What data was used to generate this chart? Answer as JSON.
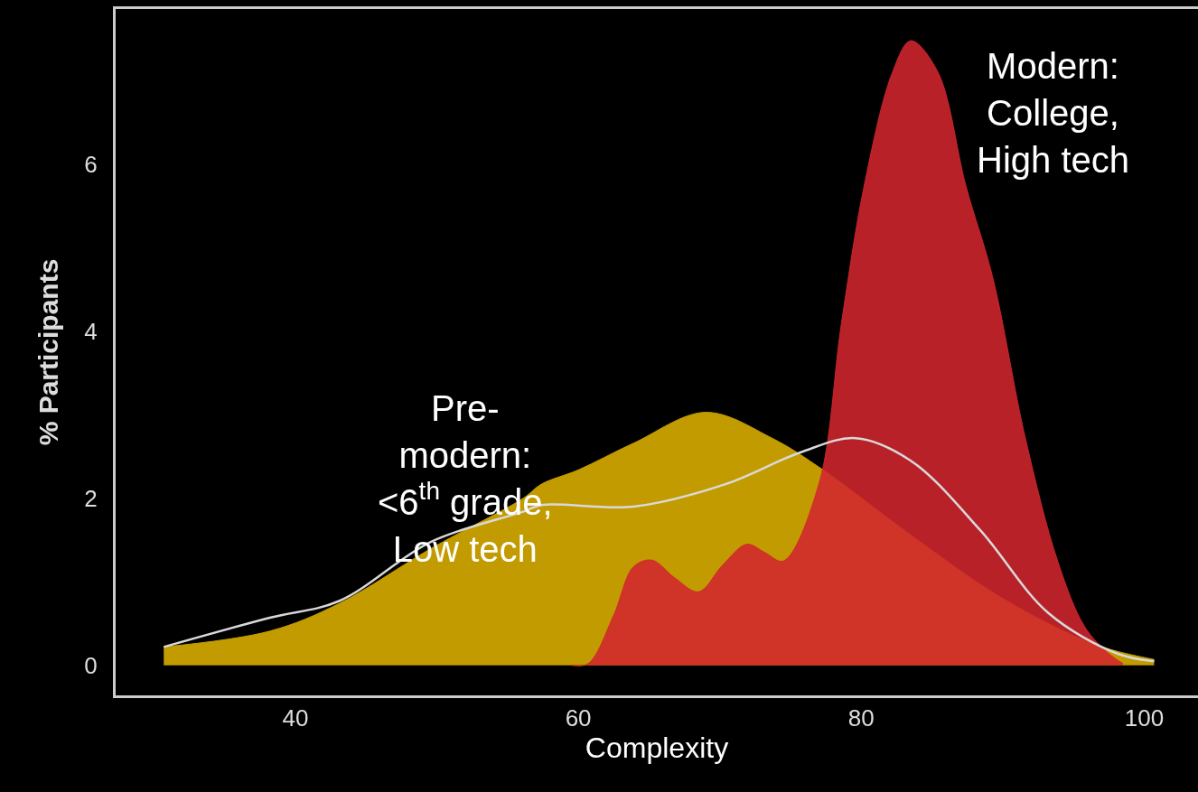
{
  "chart_data": {
    "type": "area",
    "xlabel": "Complexity",
    "ylabel": "% Participants",
    "xlim": [
      27.3,
      103.8
    ],
    "xticks": [
      40,
      60,
      80,
      100
    ],
    "ylim": [
      -0.36,
      7.86
    ],
    "yticks": [
      0,
      2,
      4,
      6
    ],
    "grid": false,
    "series": [
      {
        "color": "#c29b00",
        "x": [
          30.7,
          38.2,
          43.1,
          49.6,
          56.1,
          57.4,
          60,
          63.9,
          69.0,
          73.7,
          77.3,
          83.5,
          90,
          96.5,
          100.7
        ],
        "values": [
          0.22,
          0.41,
          0.74,
          1.4,
          2.0,
          2.17,
          2.34,
          2.66,
          3.03,
          2.72,
          2.34,
          1.56,
          0.8,
          0.25,
          0.07
        ]
      },
      {
        "color": "#d2262e",
        "x": [
          59.5,
          60.7,
          62.5,
          63.9,
          65.2,
          66.8,
          68.5,
          70.2,
          71.9,
          73.2,
          74.5,
          77,
          78.6,
          80.2,
          82.2,
          83.5,
          85.4,
          87.4,
          89.3,
          91.6,
          93.9,
          95.8,
          97.5,
          98.5
        ],
        "values": [
          0,
          0.02,
          0.6,
          1.18,
          1.26,
          1.05,
          0.88,
          1.2,
          1.45,
          1.35,
          1.25,
          2.17,
          4.1,
          5.74,
          7.1,
          7.48,
          7.11,
          5.74,
          4.64,
          2.72,
          1.24,
          0.46,
          0.14,
          0.02
        ]
      },
      {
        "type": "line",
        "color": "#d9d9d9",
        "x": [
          30.7,
          38.2,
          43.1,
          49.6,
          56.1,
          57.4,
          63.9,
          70.4,
          75.7,
          79.6,
          83.5,
          88.4,
          93.2,
          98.1,
          100.7
        ],
        "values": [
          0.22,
          0.57,
          0.77,
          1.48,
          1.84,
          1.92,
          1.9,
          2.17,
          2.55,
          2.72,
          2.45,
          1.62,
          0.63,
          0.14,
          0.05
        ]
      }
    ],
    "annotations": [
      "Pre-\nmodern:\n<6$^{th}$ grade,\nLow tech",
      "Modern:\nCollege,\nHigh tech"
    ]
  }
}
